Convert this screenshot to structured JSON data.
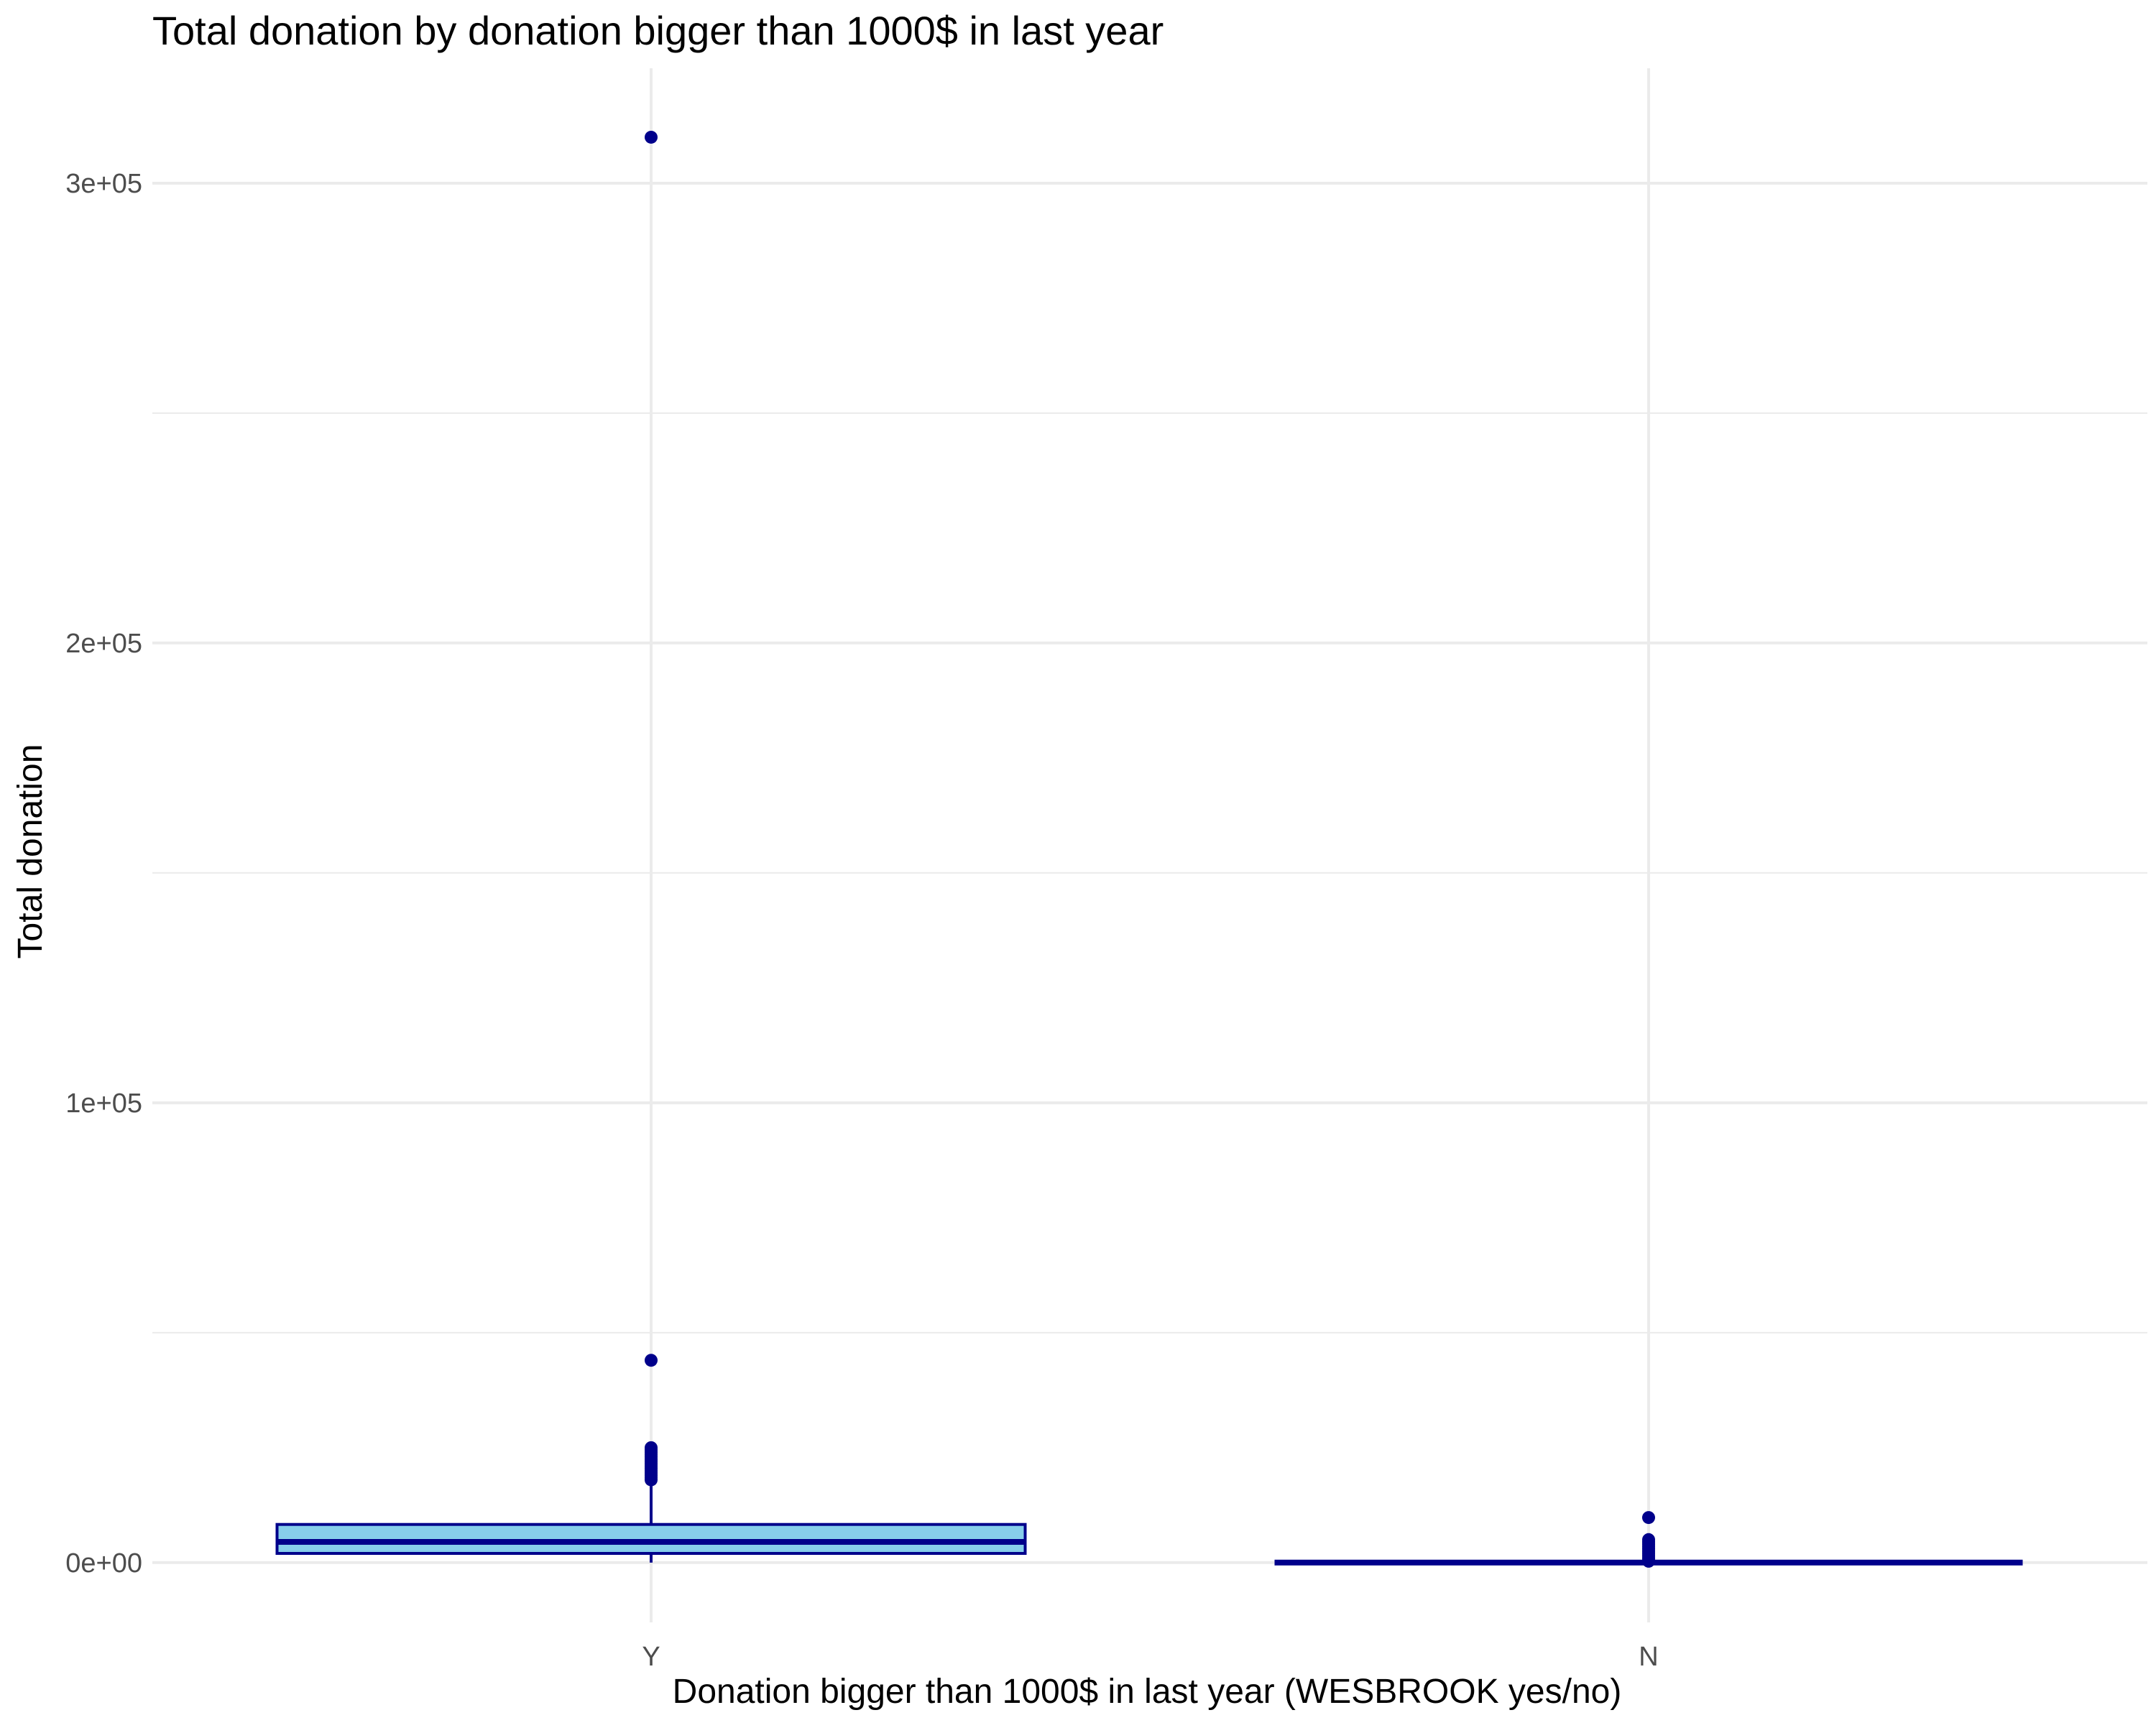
{
  "chart_data": {
    "type": "box",
    "title": "Total donation by donation bigger than 1000$ in last year",
    "xlabel": "Donation bigger than 1000$ in last year (WESBROOK yes/no)",
    "ylabel": "Total donation",
    "categories": [
      "Y",
      "N"
    ],
    "y_ticks": [
      0,
      100000,
      200000,
      300000
    ],
    "y_tick_labels": [
      "0e+00",
      "1e+05",
      "2e+05",
      "3e+05"
    ],
    "ylim": [
      -13000,
      325000
    ],
    "grid": true,
    "fill_color": "#87CEEB",
    "line_color": "#00008B",
    "series": [
      {
        "category": "Y",
        "q1": 2000,
        "median": 4500,
        "q3": 8300,
        "whisker_low": 0,
        "whisker_high": 17500,
        "outliers": [
          18000,
          18500,
          19000,
          19500,
          20000,
          20500,
          21000,
          21500,
          22000,
          22500,
          23000,
          23500,
          24000,
          24500,
          25000,
          44000,
          310000
        ]
      },
      {
        "category": "N",
        "q1": 0,
        "median": 0,
        "q3": 0,
        "whisker_low": 0,
        "whisker_high": 0,
        "outliers": [
          300,
          600,
          1000,
          1500,
          2000,
          2500,
          3000,
          3500,
          4000,
          4500,
          5000,
          9800
        ]
      }
    ]
  }
}
